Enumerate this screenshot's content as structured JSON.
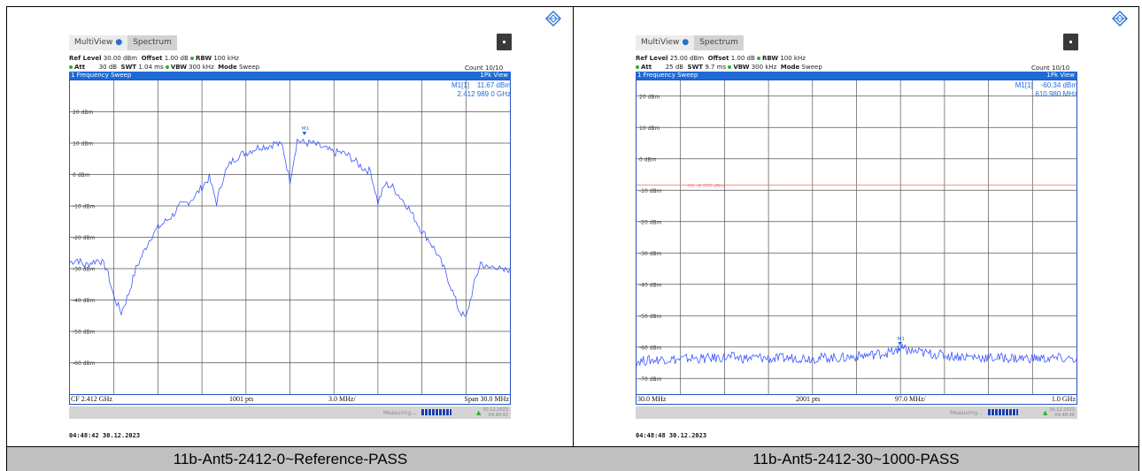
{
  "colors": {
    "trace": "#3b57ff",
    "grid": "#555555",
    "limit": "#ff7a7a",
    "accent": "#1e6ad8",
    "caption_bg": "#c0c0c0"
  },
  "panels": [
    {
      "tab_multiview": "MultiView",
      "tab_spectrum": "Spectrum",
      "ref_level_label": "Ref Level",
      "ref_level_value": "30.00 dBm",
      "offset_label": "Offset",
      "offset_value": "1.00 dB",
      "rbw_label": "RBW",
      "rbw_value": "100 kHz",
      "att_label": "Att",
      "att_value": "30 dB",
      "swt_label": "SWT",
      "swt_value": "1.04 ms",
      "vbw_label": "VBW",
      "vbw_value": "300 kHz",
      "mode_label": "Mode",
      "mode_value": "Sweep",
      "count": "Count 10/10",
      "window_title": "1 Frequency Sweep",
      "view_label": "1Pk View",
      "marker_name": "M1[1]",
      "marker_level": "11.67 dBm",
      "marker_freq": "2.412 989 0 GHz",
      "marker_tag": "M1",
      "footer_left": "CF 2.412 GHz",
      "footer_pts": "1001 pts",
      "footer_div": "3.0 MHz/",
      "footer_right": "Span 30.0 MHz",
      "status_text": "Measuring...",
      "status_date": "30.12.2023",
      "status_time": "04:48:41",
      "timestamp": "04:48:42  30.12.2023",
      "caption": "11b-Ant5-2412-0~Reference-PASS"
    },
    {
      "tab_multiview": "MultiView",
      "tab_spectrum": "Spectrum",
      "ref_level_label": "Ref Level",
      "ref_level_value": "25.00 dBm",
      "offset_label": "Offset",
      "offset_value": "1.00 dB",
      "rbw_label": "RBW",
      "rbw_value": "100 kHz",
      "att_label": "Att",
      "att_value": "25 dB",
      "swt_label": "SWT",
      "swt_value": "9.7 ms",
      "vbw_label": "VBW",
      "vbw_value": "300 kHz",
      "mode_label": "Mode",
      "mode_value": "Sweep",
      "count": "Count 10/10",
      "window_title": "1 Frequency Sweep",
      "view_label": "1Pk View",
      "marker_name": "M1[1]",
      "marker_level": "-60.34 dBm",
      "marker_freq": "610.980 MHz",
      "marker_tag": "M1",
      "limit_label": "H1 -8.330 dBm",
      "footer_left": "30.0 MHz",
      "footer_pts": "2001 pts",
      "footer_div": "97.0 MHz/",
      "footer_right": "1.0 GHz",
      "status_text": "Measuring...",
      "status_date": "30.12.2023",
      "status_time": "04:48:48",
      "timestamp": "04:48:48  30.12.2023",
      "caption": "11b-Ant5-2412-30~1000-PASS"
    }
  ],
  "chart_data": [
    {
      "type": "line",
      "title": "1 Frequency Sweep",
      "xlabel": "",
      "ylabel": "",
      "x_unit": "GHz",
      "xlim": [
        2.397,
        2.427
      ],
      "ylim": [
        -70,
        30
      ],
      "y_ticks": [
        "20 dBm",
        "10 dBm",
        "0 dBm",
        "-10 dBm",
        "-20 dBm",
        "-30 dBm",
        "-40 dBm",
        "-50 dBm",
        "-60 dBm"
      ],
      "y_tick_values": [
        20,
        10,
        0,
        -10,
        -20,
        -30,
        -40,
        -50,
        -60
      ],
      "grid": true,
      "series": [
        {
          "x": [
            2.397,
            2.3975,
            2.398,
            2.3985,
            2.399,
            2.3995,
            2.4,
            2.4005,
            2.401,
            2.4015,
            2.402,
            2.4025,
            2.403,
            2.4035,
            2.404,
            2.4045,
            2.405,
            2.4055,
            2.406,
            2.4065,
            2.407,
            2.4075,
            2.408,
            2.4085,
            2.409,
            2.4095,
            2.41,
            2.4105,
            2.411,
            2.4115,
            2.412,
            2.4125,
            2.413,
            2.4135,
            2.414,
            2.4145,
            2.415,
            2.4155,
            2.416,
            2.4165,
            2.417,
            2.4175,
            2.418,
            2.4185,
            2.419,
            2.4195,
            2.42,
            2.4205,
            2.421,
            2.4215,
            2.422,
            2.4225,
            2.423,
            2.4235,
            2.424,
            2.4245,
            2.425,
            2.4255,
            2.426,
            2.4265,
            2.427
          ],
          "y": [
            -28,
            -27,
            -29,
            -28,
            -27,
            -30,
            -39,
            -44,
            -38,
            -30,
            -25,
            -20,
            -17,
            -15,
            -13,
            -10,
            -9,
            -7,
            -4,
            -1,
            -9,
            0,
            4,
            6,
            7,
            8,
            9,
            9,
            10,
            9,
            -2,
            11,
            10,
            10,
            9,
            8,
            7,
            7,
            6,
            4,
            2,
            1,
            -9,
            -3,
            -4,
            -7,
            -10,
            -14,
            -18,
            -21,
            -25,
            -30,
            -36,
            -43,
            -46,
            -36,
            -28,
            -30,
            -29,
            -31,
            -30
          ]
        }
      ],
      "marker": {
        "name": "M1",
        "x": 2.412989,
        "y": 11.67
      }
    },
    {
      "type": "line",
      "title": "1 Frequency Sweep",
      "xlabel": "",
      "ylabel": "",
      "x_unit": "MHz",
      "xlim": [
        30,
        1000
      ],
      "ylim": [
        -75,
        25
      ],
      "y_ticks": [
        "20 dBm",
        "10 dBm",
        "0 dBm",
        "-10 dBm",
        "-20 dBm",
        "-30 dBm",
        "-40 dBm",
        "-50 dBm",
        "-60 dBm",
        "-70 dBm"
      ],
      "y_tick_values": [
        20,
        10,
        0,
        -10,
        -20,
        -30,
        -40,
        -50,
        -60,
        -70
      ],
      "grid": true,
      "limit_line": {
        "name": "H1",
        "y": -8.33
      },
      "series": [
        {
          "x": [
            30,
            60,
            90,
            120,
            150,
            180,
            210,
            240,
            270,
            300,
            330,
            360,
            390,
            420,
            450,
            480,
            510,
            540,
            570,
            600,
            611,
            630,
            660,
            690,
            720,
            750,
            780,
            810,
            840,
            870,
            900,
            930,
            960,
            1000
          ],
          "y": [
            -64.5,
            -64.2,
            -63.8,
            -64.0,
            -63.5,
            -63.7,
            -63.4,
            -63.2,
            -63.6,
            -63.3,
            -63.8,
            -63.5,
            -63.4,
            -63.6,
            -63.3,
            -63.5,
            -63.0,
            -62.6,
            -62.0,
            -61.5,
            -60.3,
            -61.2,
            -61.8,
            -62.3,
            -62.8,
            -63.0,
            -63.2,
            -63.5,
            -63.4,
            -63.6,
            -63.5,
            -63.7,
            -63.6,
            -63.8
          ]
        }
      ],
      "marker": {
        "name": "M1",
        "x": 610.98,
        "y": -60.34
      }
    }
  ]
}
